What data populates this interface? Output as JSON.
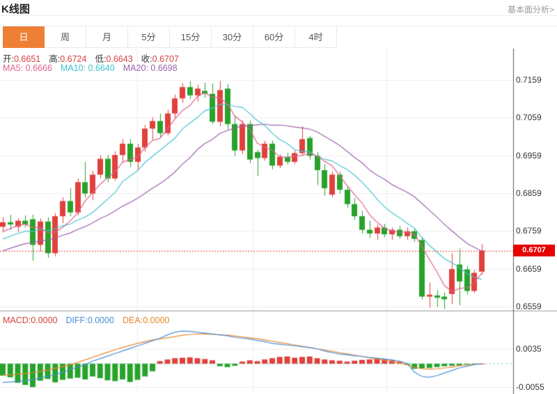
{
  "header": {
    "title": "K线图",
    "link": "基本面分析>"
  },
  "tabs": {
    "items": [
      "日",
      "周",
      "月",
      "5分",
      "15分",
      "30分",
      "60分",
      "4时"
    ],
    "active_index": 0
  },
  "ohlc_legend": {
    "open_label": "开:",
    "open": "0.6651",
    "high_label": "高:",
    "high": "0.6724",
    "low_label": "低:",
    "low": "0.6643",
    "close_label": "收:",
    "close": "0.6707"
  },
  "ma_legend": {
    "ma5_label": "MA5:",
    "ma5": "0.6666",
    "ma10_label": "MA10:",
    "ma10": "0.6640",
    "ma20_label": "MA20:",
    "ma20": "0.6698"
  },
  "macd_legend": {
    "macd_label": "MACD:",
    "macd": "0.0000",
    "diff_label": "DIFF:",
    "diff": "0.0000",
    "dea_label": "DEA:",
    "dea": "0.0000"
  },
  "colors": {
    "up": "#e0413d",
    "down": "#27a32b",
    "ma5": "#e0638e",
    "ma10": "#45c2d1",
    "ma20": "#9b62ab",
    "diff": "#4a90d9",
    "dea": "#e8872e",
    "grid": "#ececec",
    "axis": "#555555",
    "divider": "#999999",
    "price_line": "#e83a3a",
    "tag_bg": "#e60000",
    "zero_line": "#7fd8d8",
    "tab_active": "#ee8036"
  },
  "chart_data": {
    "type": "candlestick+macd",
    "main": {
      "y_ticks": [
        "0.7159",
        "0.7059",
        "0.6959",
        "0.6859",
        "0.6759",
        "0.6659",
        "0.6559"
      ],
      "y_tick_values": [
        0.7159,
        0.7059,
        0.6959,
        0.6859,
        0.6759,
        0.6659,
        0.6559
      ],
      "last_price": "0.6707",
      "last_price_value": 0.6707,
      "ma_periods": [
        5,
        10,
        20
      ],
      "ma_seed_closes": [
        0.664,
        0.6648,
        0.6655,
        0.666,
        0.6668,
        0.6672,
        0.6678,
        0.6684,
        0.669,
        0.6695,
        0.67,
        0.6706,
        0.6712,
        0.6718,
        0.6724,
        0.673,
        0.6738,
        0.6746,
        0.6756,
        0.6766
      ],
      "candles": [
        [
          0.677,
          0.6795,
          0.6755,
          0.6782
        ],
        [
          0.6782,
          0.6802,
          0.6762,
          0.6776
        ],
        [
          0.677,
          0.6792,
          0.6756,
          0.6786
        ],
        [
          0.6786,
          0.68,
          0.6768,
          0.6776
        ],
        [
          0.679,
          0.6802,
          0.668,
          0.6722
        ],
        [
          0.6722,
          0.6792,
          0.6705,
          0.6784
        ],
        [
          0.6784,
          0.6795,
          0.6688,
          0.67
        ],
        [
          0.67,
          0.6806,
          0.6692,
          0.6798
        ],
        [
          0.6798,
          0.6848,
          0.678,
          0.6838
        ],
        [
          0.6838,
          0.6872,
          0.6798,
          0.6808
        ],
        [
          0.6808,
          0.6898,
          0.68,
          0.6888
        ],
        [
          0.6888,
          0.6942,
          0.6848,
          0.6858
        ],
        [
          0.6858,
          0.6918,
          0.684,
          0.6908
        ],
        [
          0.6908,
          0.696,
          0.6898,
          0.695
        ],
        [
          0.695,
          0.696,
          0.6888,
          0.6898
        ],
        [
          0.6898,
          0.697,
          0.6892,
          0.696
        ],
        [
          0.696,
          0.7002,
          0.694,
          0.699
        ],
        [
          0.699,
          0.7002,
          0.6928,
          0.6942
        ],
        [
          0.6942,
          0.699,
          0.692,
          0.698
        ],
        [
          0.698,
          0.704,
          0.6968,
          0.703
        ],
        [
          0.703,
          0.706,
          0.7,
          0.705
        ],
        [
          0.705,
          0.707,
          0.7008,
          0.7018
        ],
        [
          0.7018,
          0.708,
          0.7012,
          0.707
        ],
        [
          0.707,
          0.712,
          0.7058,
          0.711
        ],
        [
          0.711,
          0.715,
          0.7098,
          0.714
        ],
        [
          0.714,
          0.7156,
          0.7108,
          0.7118
        ],
        [
          0.7118,
          0.7146,
          0.7102,
          0.7136
        ],
        [
          0.713,
          0.7152,
          0.7112,
          0.7122
        ],
        [
          0.7122,
          0.715,
          0.7042,
          0.7048
        ],
        [
          0.7048,
          0.7156,
          0.7036,
          0.7132
        ],
        [
          0.7136,
          0.7148,
          0.7028,
          0.7042
        ],
        [
          0.7042,
          0.7062,
          0.6958,
          0.6972
        ],
        [
          0.6972,
          0.7052,
          0.6962,
          0.7042
        ],
        [
          0.7042,
          0.7052,
          0.6938,
          0.6948
        ],
        [
          0.6968,
          0.6974,
          0.6905,
          0.6952
        ],
        [
          0.6952,
          0.6998,
          0.6945,
          0.699
        ],
        [
          0.699,
          0.6998,
          0.6922,
          0.6932
        ],
        [
          0.6932,
          0.6962,
          0.6925,
          0.6955
        ],
        [
          0.6955,
          0.6966,
          0.6935,
          0.6942
        ],
        [
          0.6942,
          0.6972,
          0.6936,
          0.6965
        ],
        [
          0.6965,
          0.7036,
          0.6958,
          0.7002
        ],
        [
          0.7005,
          0.701,
          0.6948,
          0.6958
        ],
        [
          0.6958,
          0.6968,
          0.688,
          0.692
        ],
        [
          0.692,
          0.6936,
          0.6852,
          0.6872
        ],
        [
          0.6855,
          0.6916,
          0.6848,
          0.6908
        ],
        [
          0.6908,
          0.6916,
          0.6858,
          0.6868
        ],
        [
          0.6868,
          0.6878,
          0.682,
          0.683
        ],
        [
          0.683,
          0.6846,
          0.6788,
          0.6798
        ],
        [
          0.6798,
          0.6812,
          0.6752,
          0.6762
        ],
        [
          0.6762,
          0.6786,
          0.674,
          0.6752
        ],
        [
          0.6752,
          0.6776,
          0.6735,
          0.6768
        ],
        [
          0.6768,
          0.6778,
          0.6742,
          0.675
        ],
        [
          0.675,
          0.6768,
          0.6735,
          0.6762
        ],
        [
          0.6762,
          0.6772,
          0.6738,
          0.6745
        ],
        [
          0.6745,
          0.6768,
          0.6735,
          0.6758
        ],
        [
          0.6758,
          0.6766,
          0.673,
          0.6738
        ],
        [
          0.6735,
          0.6742,
          0.6578,
          0.6585
        ],
        [
          0.6585,
          0.6622,
          0.6556,
          0.659
        ],
        [
          0.6588,
          0.6602,
          0.6558,
          0.6582
        ],
        [
          0.6585,
          0.6596,
          0.6552,
          0.6578
        ],
        [
          0.6592,
          0.67,
          0.6565,
          0.6658
        ],
        [
          0.667,
          0.6712,
          0.6562,
          0.6625
        ],
        [
          0.6657,
          0.6666,
          0.659,
          0.66
        ],
        [
          0.66,
          0.6656,
          0.6595,
          0.6648
        ],
        [
          0.6651,
          0.6724,
          0.6643,
          0.6707
        ]
      ]
    },
    "macd": {
      "y_ticks": [
        "0.0035",
        "-0.0055"
      ],
      "y_tick_values": [
        0.0035,
        -0.0055
      ],
      "histogram": [
        -0.0028,
        -0.0032,
        -0.0045,
        -0.005,
        -0.0055,
        -0.004,
        -0.0036,
        -0.0044,
        -0.0038,
        -0.0035,
        -0.0033,
        -0.0037,
        -0.003,
        -0.0034,
        -0.0039,
        -0.0041,
        -0.0037,
        -0.0043,
        -0.0038,
        -0.003,
        -0.0018,
        0.0006,
        0.001,
        0.0013,
        0.0014,
        0.0015,
        0.0013,
        0.0011,
        0.0008,
        -0.0006,
        -0.0008,
        -0.0005,
        0.0005,
        0.0008,
        0.0006,
        0.001,
        0.0013,
        0.0016,
        0.0017,
        0.0014,
        0.0016,
        0.0017,
        0.0013,
        0.001,
        0.0008,
        0.0007,
        0.0005,
        0.0007,
        0.0009,
        0.001,
        0.0012,
        0.001,
        0.0008,
        0.0005,
        -0.0003,
        -0.0012,
        -0.0011,
        -0.001,
        -0.0008,
        -0.0006,
        -0.0005,
        -0.0004,
        -0.0002,
        -0.0001,
        0.0
      ],
      "diff": [
        -0.0044,
        -0.0043,
        -0.0042,
        -0.004,
        -0.0038,
        -0.0034,
        -0.003,
        -0.0026,
        -0.002,
        -0.0014,
        -0.0008,
        -0.0002,
        0.0006,
        0.0012,
        0.0018,
        0.0024,
        0.003,
        0.0036,
        0.0042,
        0.0048,
        0.0054,
        0.006,
        0.0068,
        0.0074,
        0.0077,
        0.0076,
        0.0074,
        0.0072,
        0.007,
        0.0068,
        0.0066,
        0.0062,
        0.006,
        0.0058,
        0.0055,
        0.0052,
        0.0048,
        0.0046,
        0.0044,
        0.0042,
        0.004,
        0.0038,
        0.0035,
        0.003,
        0.0026,
        0.0023,
        0.0021,
        0.0019,
        0.0017,
        0.0015,
        0.0013,
        0.0011,
        0.0009,
        0.0006,
        0.0001,
        -0.002,
        -0.003,
        -0.0032,
        -0.0028,
        -0.0022,
        -0.0016,
        -0.001,
        -0.0006,
        -0.0002,
        0.0
      ],
      "dea": [
        -0.0027,
        -0.0026,
        -0.0025,
        -0.0023,
        -0.0021,
        -0.0018,
        -0.0015,
        -0.0011,
        -0.0007,
        -0.0002,
        0.0003,
        0.0009,
        0.0015,
        0.0021,
        0.0027,
        0.0033,
        0.0038,
        0.0043,
        0.0048,
        0.0052,
        0.0056,
        0.0058,
        0.0061,
        0.0064,
        0.0067,
        0.0069,
        0.007,
        0.007,
        0.0069,
        0.0068,
        0.0067,
        0.0065,
        0.0063,
        0.0061,
        0.0059,
        0.0056,
        0.0053,
        0.005,
        0.0047,
        0.0044,
        0.0041,
        0.0038,
        0.0035,
        0.0032,
        0.0029,
        0.0026,
        0.0023,
        0.002,
        0.0017,
        0.0014,
        0.0011,
        0.0008,
        0.0005,
        0.0002,
        -0.0002,
        -0.0008,
        -0.0012,
        -0.0013,
        -0.0012,
        -0.001,
        -0.0008,
        -0.0005,
        -0.0003,
        -0.0001,
        0.0
      ]
    }
  }
}
